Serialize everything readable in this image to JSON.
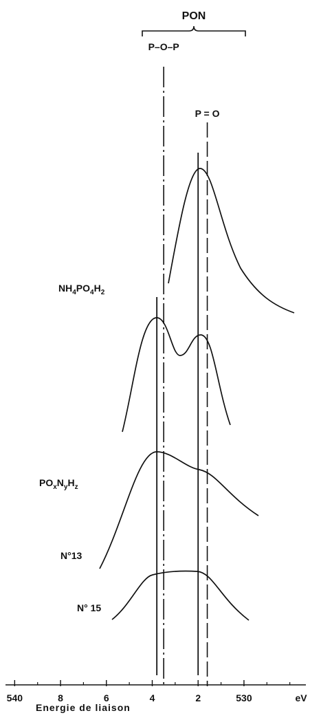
{
  "chart_data": {
    "type": "spectra",
    "bracket_label": "PON",
    "xlabel": "Energie de liaison",
    "unit": "eV",
    "xlim": [
      540.4,
      527.3
    ],
    "xticks": [
      {
        "value": 540,
        "label": "540"
      },
      {
        "value": 538,
        "label": "8"
      },
      {
        "value": 536,
        "label": "6"
      },
      {
        "value": 534,
        "label": "4"
      },
      {
        "value": 532,
        "label": "2"
      },
      {
        "value": 530,
        "label": "530"
      }
    ],
    "xminor": [
      539,
      537,
      535,
      533,
      531,
      529,
      528
    ],
    "markers": [
      {
        "label": "P–O–P",
        "value": 533.5,
        "style": "dashdot"
      },
      {
        "label": "P = O",
        "value": 531.6,
        "style": "dashed"
      }
    ],
    "peaks": [
      532.0,
      533.8
    ],
    "spectra": [
      {
        "name": [
          "NH",
          "4",
          "PO",
          "4",
          "H",
          "2"
        ]
      },
      {
        "name": [
          "PO",
          "x",
          "N",
          "y",
          "H",
          "z"
        ]
      },
      {
        "name": [
          "N°13"
        ]
      },
      {
        "name": [
          "N° 15"
        ]
      }
    ]
  }
}
